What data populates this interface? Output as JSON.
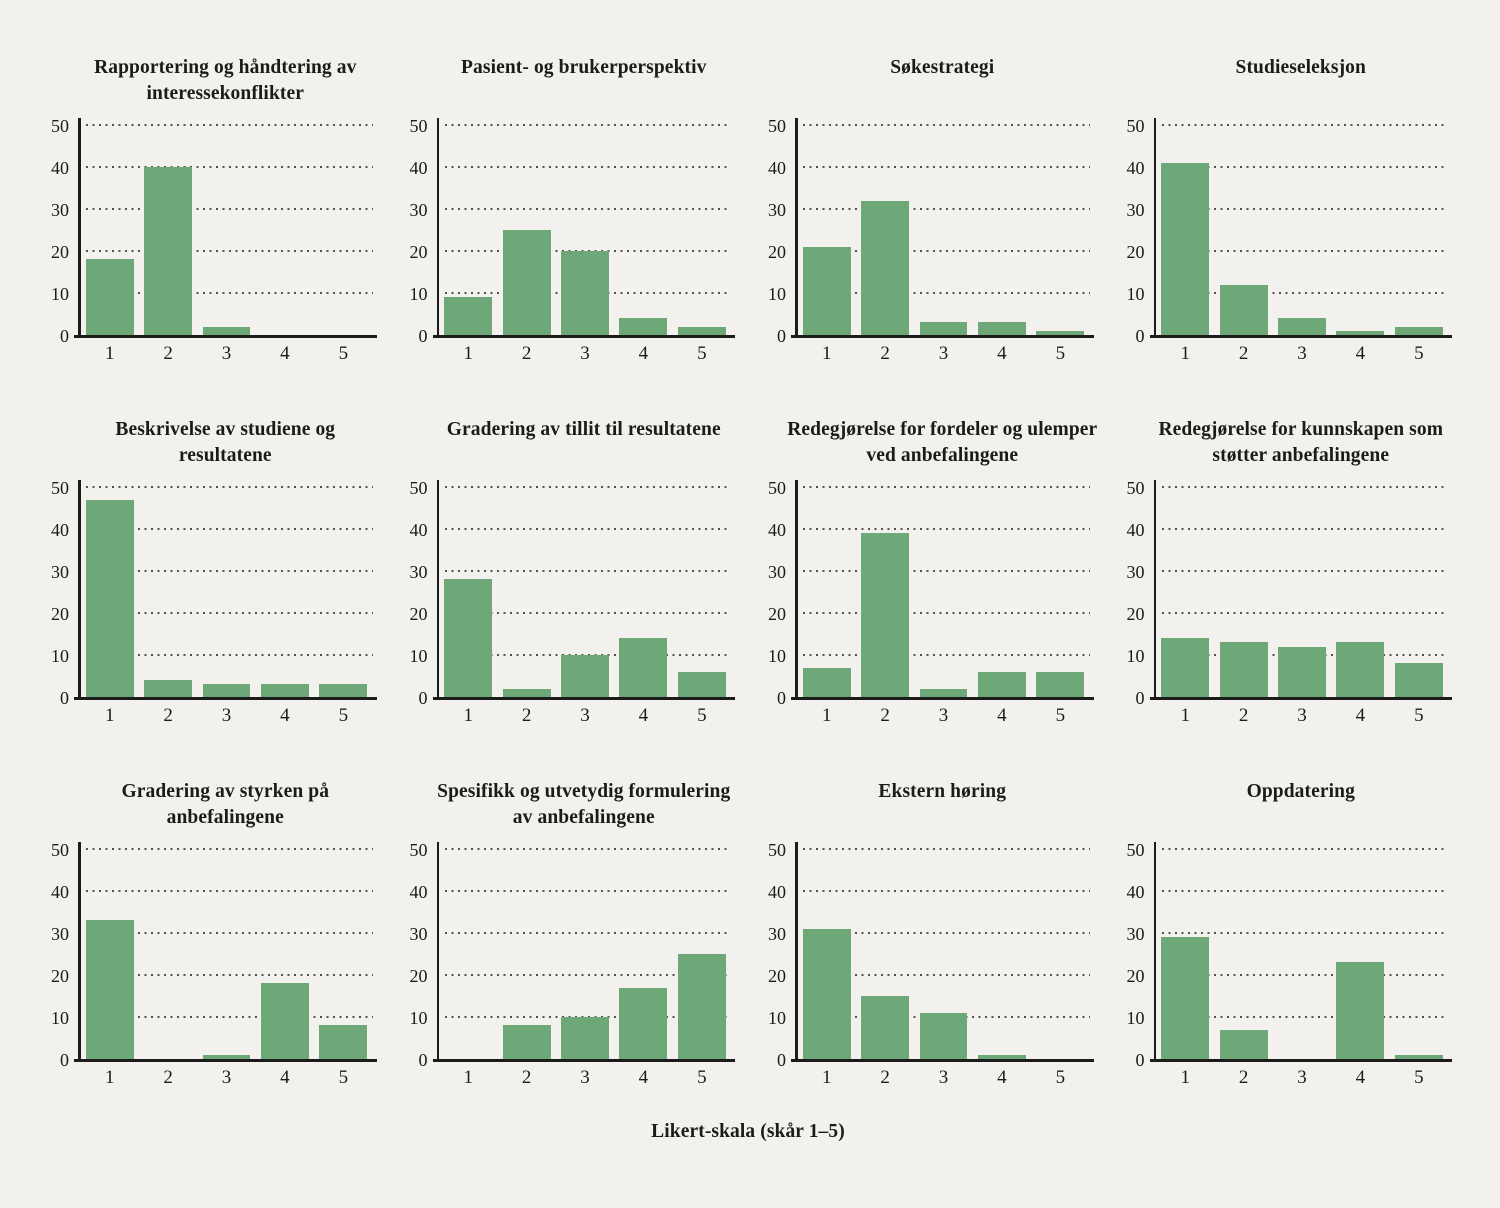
{
  "figure": {
    "xlabel": "Likert-skala (skår 1–5)",
    "colors": {
      "background": "#f2f1ee",
      "bar": "#6fa878",
      "axis": "#1c1c1b",
      "grid_dots": "#2d2b28",
      "text": "#1b1b1a"
    }
  },
  "chart_data": [
    {
      "type": "bar",
      "title": "Rapportering og håndtering av interessekonflikter",
      "categories": [
        "1",
        "2",
        "3",
        "4",
        "5"
      ],
      "values": [
        18,
        40,
        2,
        0,
        0
      ],
      "xlabel": "",
      "ylabel": "",
      "ylim": [
        0,
        50
      ],
      "yticks": [
        0,
        10,
        20,
        30,
        40,
        50
      ],
      "grid": "horizontal-dotted",
      "legend": "none"
    },
    {
      "type": "bar",
      "title": "Pasient- og brukerperspektiv",
      "categories": [
        "1",
        "2",
        "3",
        "4",
        "5"
      ],
      "values": [
        9,
        25,
        20,
        4,
        2
      ],
      "xlabel": "",
      "ylabel": "",
      "ylim": [
        0,
        50
      ],
      "yticks": [
        0,
        10,
        20,
        30,
        40,
        50
      ],
      "grid": "horizontal-dotted",
      "legend": "none"
    },
    {
      "type": "bar",
      "title": "Søkestrategi",
      "categories": [
        "1",
        "2",
        "3",
        "4",
        "5"
      ],
      "values": [
        21,
        32,
        3,
        3,
        1
      ],
      "xlabel": "",
      "ylabel": "",
      "ylim": [
        0,
        50
      ],
      "yticks": [
        0,
        10,
        20,
        30,
        40,
        50
      ],
      "grid": "horizontal-dotted",
      "legend": "none"
    },
    {
      "type": "bar",
      "title": "Studieseleksjon",
      "categories": [
        "1",
        "2",
        "3",
        "4",
        "5"
      ],
      "values": [
        41,
        12,
        4,
        1,
        2
      ],
      "xlabel": "",
      "ylabel": "",
      "ylim": [
        0,
        50
      ],
      "yticks": [
        0,
        10,
        20,
        30,
        40,
        50
      ],
      "grid": "horizontal-dotted",
      "legend": "none"
    },
    {
      "type": "bar",
      "title": "Beskrivelse av studiene og resultatene",
      "categories": [
        "1",
        "2",
        "3",
        "4",
        "5"
      ],
      "values": [
        47,
        4,
        3,
        3,
        3
      ],
      "xlabel": "",
      "ylabel": "",
      "ylim": [
        0,
        50
      ],
      "yticks": [
        0,
        10,
        20,
        30,
        40,
        50
      ],
      "grid": "horizontal-dotted",
      "legend": "none"
    },
    {
      "type": "bar",
      "title": "Gradering av tillit til resultatene",
      "categories": [
        "1",
        "2",
        "3",
        "4",
        "5"
      ],
      "values": [
        28,
        2,
        10,
        14,
        6
      ],
      "xlabel": "",
      "ylabel": "",
      "ylim": [
        0,
        50
      ],
      "yticks": [
        0,
        10,
        20,
        30,
        40,
        50
      ],
      "grid": "horizontal-dotted",
      "legend": "none"
    },
    {
      "type": "bar",
      "title": "Redegjørelse for fordeler og ulemper ved anbefalingene",
      "categories": [
        "1",
        "2",
        "3",
        "4",
        "5"
      ],
      "values": [
        7,
        39,
        2,
        6,
        6
      ],
      "xlabel": "",
      "ylabel": "",
      "ylim": [
        0,
        50
      ],
      "yticks": [
        0,
        10,
        20,
        30,
        40,
        50
      ],
      "grid": "horizontal-dotted",
      "legend": "none"
    },
    {
      "type": "bar",
      "title": "Redegjørelse for kunnskapen som støtter anbefalingene",
      "categories": [
        "1",
        "2",
        "3",
        "4",
        "5"
      ],
      "values": [
        14,
        13,
        12,
        13,
        8
      ],
      "xlabel": "",
      "ylabel": "",
      "ylim": [
        0,
        50
      ],
      "yticks": [
        0,
        10,
        20,
        30,
        40,
        50
      ],
      "grid": "horizontal-dotted",
      "legend": "none"
    },
    {
      "type": "bar",
      "title": "Gradering av styrken på anbefalingene",
      "categories": [
        "1",
        "2",
        "3",
        "4",
        "5"
      ],
      "values": [
        33,
        0,
        1,
        18,
        8
      ],
      "xlabel": "",
      "ylabel": "",
      "ylim": [
        0,
        50
      ],
      "yticks": [
        0,
        10,
        20,
        30,
        40,
        50
      ],
      "grid": "horizontal-dotted",
      "legend": "none"
    },
    {
      "type": "bar",
      "title": "Spesifikk og utvetydig formulering av anbefalingene",
      "categories": [
        "1",
        "2",
        "3",
        "4",
        "5"
      ],
      "values": [
        0,
        8,
        10,
        17,
        25
      ],
      "xlabel": "",
      "ylabel": "",
      "ylim": [
        0,
        50
      ],
      "yticks": [
        0,
        10,
        20,
        30,
        40,
        50
      ],
      "grid": "horizontal-dotted",
      "legend": "none"
    },
    {
      "type": "bar",
      "title": "Ekstern høring",
      "categories": [
        "1",
        "2",
        "3",
        "4",
        "5"
      ],
      "values": [
        31,
        15,
        11,
        1,
        0
      ],
      "xlabel": "",
      "ylabel": "",
      "ylim": [
        0,
        50
      ],
      "yticks": [
        0,
        10,
        20,
        30,
        40,
        50
      ],
      "grid": "horizontal-dotted",
      "legend": "none"
    },
    {
      "type": "bar",
      "title": "Oppdatering",
      "categories": [
        "1",
        "2",
        "3",
        "4",
        "5"
      ],
      "values": [
        29,
        7,
        0,
        23,
        1
      ],
      "xlabel": "",
      "ylabel": "",
      "ylim": [
        0,
        50
      ],
      "yticks": [
        0,
        10,
        20,
        30,
        40,
        50
      ],
      "grid": "horizontal-dotted",
      "legend": "none"
    }
  ]
}
